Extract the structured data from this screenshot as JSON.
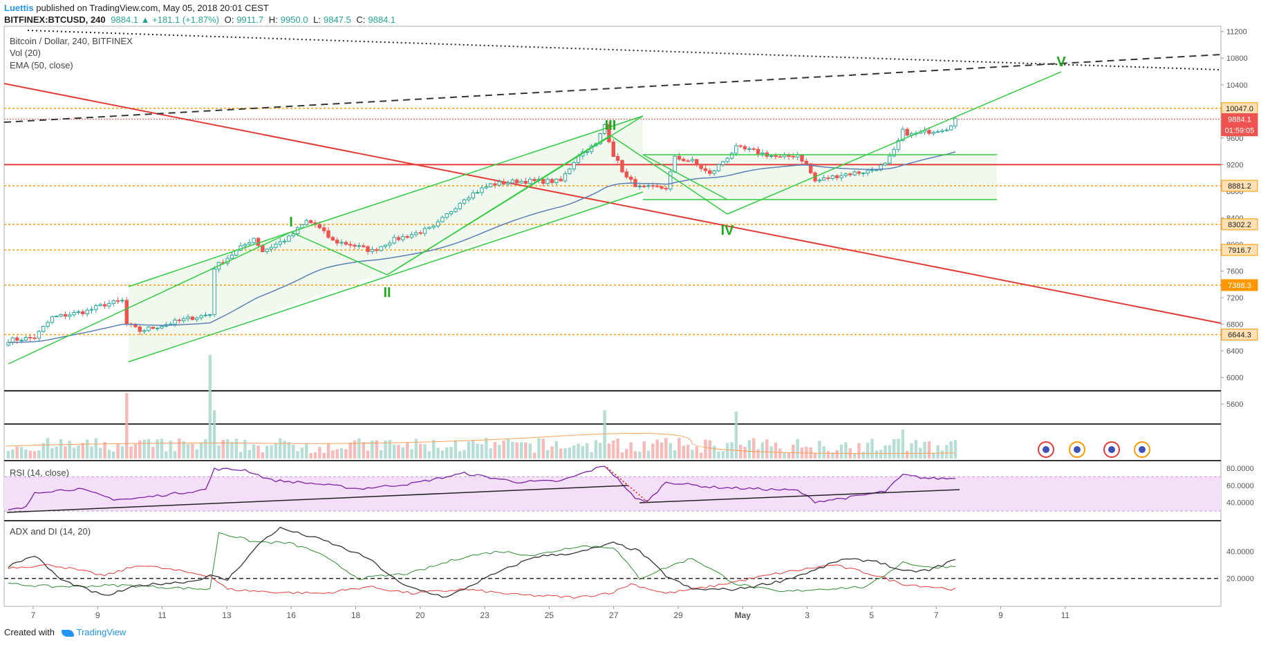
{
  "header": {
    "author": "Luettis",
    "published_text": "published on TradingView.com, May 05, 2018 20:01 CEST",
    "symbol": "BITFINEX:BTCUSD, 240",
    "change": "9884.1 ▲ +181.1 (+1.87%)",
    "o_label": "O:",
    "o": "9911.7",
    "h_label": "H:",
    "h": "9950.0",
    "l_label": "L:",
    "l": "9847.5",
    "c_label": "C:",
    "c": "9884.1"
  },
  "legend": {
    "main": "Bitcoin / Dollar, 240, BITFINEX",
    "vol": "Vol (20)",
    "ema": "EMA (50, close)",
    "rsi": "RSI (14, close)",
    "adx": "ADX and DI (14, 20)"
  },
  "footer": {
    "created_with": "Created with",
    "brand": "TradingView"
  },
  "colors": {
    "up": "#26a69a",
    "down": "#ef5350",
    "trend": "#e53935",
    "green": "#2ecc40",
    "wave_label": "#1fa91f",
    "orange": "#ff9800",
    "ema": "#5b7fb5",
    "rsi": "#7b1fa2",
    "adx": "#333333",
    "plus_di": "#2e8b2e",
    "minus_di": "#e53935"
  },
  "chart_data": {
    "type": "candlestick",
    "title": "Bitcoin / Dollar, 240, BITFINEX",
    "x_labels": [
      "7",
      "9",
      "11",
      "13",
      "16",
      "18",
      "20",
      "23",
      "25",
      "27",
      "29",
      "May",
      "3",
      "5",
      "7",
      "9",
      "11"
    ],
    "y_ticks": [
      5600,
      6000,
      6400,
      6800,
      7200,
      7600,
      8000,
      8400,
      8800,
      9200,
      9600,
      10000,
      10400,
      10800,
      11200
    ],
    "ylim": [
      5300,
      11280
    ],
    "price_tags": [
      {
        "value": 10047.0,
        "label": "10047.0",
        "kind": "level"
      },
      {
        "value": 9884.1,
        "label": "9884.1",
        "kind": "last"
      },
      {
        "value": 9715,
        "label": "01:59:05",
        "kind": "timer"
      },
      {
        "value": 8881.2,
        "label": "8881.2",
        "kind": "level"
      },
      {
        "value": 8302.2,
        "label": "8302.2",
        "kind": "level"
      },
      {
        "value": 7916.7,
        "label": "7916.7",
        "kind": "level"
      },
      {
        "value": 7388.3,
        "label": "7388.3",
        "kind": "level-strong"
      },
      {
        "value": 6644.3,
        "label": "6644.3",
        "kind": "level"
      }
    ],
    "horizontal_levels": [
      {
        "value": 10047.0,
        "style": "orange-dotted"
      },
      {
        "value": 9884.1,
        "style": "red-dotted"
      },
      {
        "value": 9200,
        "style": "red-solid"
      },
      {
        "value": 8881.2,
        "style": "orange-dotted"
      },
      {
        "value": 8302.2,
        "style": "orange-dotted"
      },
      {
        "value": 7916.7,
        "style": "orange-dotted"
      },
      {
        "value": 7388.3,
        "style": "orange-dotted"
      },
      {
        "value": 6644.3,
        "style": "orange-dotted"
      }
    ],
    "wave_labels": [
      "I",
      "II",
      "III",
      "IV",
      "V"
    ],
    "close_anchors": [
      [
        0,
        6560
      ],
      [
        6,
        6600
      ],
      [
        10,
        6900
      ],
      [
        18,
        7000
      ],
      [
        22,
        7100
      ],
      [
        26,
        7150
      ],
      [
        27,
        6800
      ],
      [
        30,
        6700
      ],
      [
        36,
        6800
      ],
      [
        42,
        6900
      ],
      [
        46,
        6950
      ],
      [
        47,
        7650
      ],
      [
        52,
        7900
      ],
      [
        56,
        8100
      ],
      [
        58,
        7900
      ],
      [
        64,
        8100
      ],
      [
        68,
        8350
      ],
      [
        70,
        8300
      ],
      [
        74,
        8050
      ],
      [
        78,
        8000
      ],
      [
        83,
        7900
      ],
      [
        87,
        8050
      ],
      [
        92,
        8150
      ],
      [
        97,
        8250
      ],
      [
        104,
        8700
      ],
      [
        110,
        8900
      ],
      [
        116,
        8950
      ],
      [
        122,
        8950
      ],
      [
        126,
        8950
      ],
      [
        130,
        9350
      ],
      [
        134,
        9500
      ],
      [
        136,
        9800
      ],
      [
        138,
        9350
      ],
      [
        141,
        9000
      ],
      [
        144,
        8850
      ],
      [
        150,
        8850
      ],
      [
        152,
        9300
      ],
      [
        156,
        9250
      ],
      [
        160,
        9050
      ],
      [
        166,
        9450
      ],
      [
        170,
        9400
      ],
      [
        176,
        9300
      ],
      [
        180,
        9350
      ],
      [
        182,
        9200
      ],
      [
        184,
        8950
      ],
      [
        190,
        9050
      ],
      [
        196,
        9100
      ],
      [
        200,
        9200
      ],
      [
        202,
        9400
      ],
      [
        204,
        9700
      ],
      [
        206,
        9650
      ],
      [
        210,
        9700
      ],
      [
        214,
        9750
      ],
      [
        216,
        9884
      ]
    ],
    "rsi_ticks": [
      80,
      60,
      40
    ],
    "rsi_anchors": [
      [
        0,
        31
      ],
      [
        4,
        34
      ],
      [
        6,
        52
      ],
      [
        16,
        56
      ],
      [
        24,
        44
      ],
      [
        28,
        44
      ],
      [
        45,
        55
      ],
      [
        47,
        79
      ],
      [
        54,
        78
      ],
      [
        60,
        66
      ],
      [
        70,
        62
      ],
      [
        80,
        56
      ],
      [
        92,
        62
      ],
      [
        104,
        74
      ],
      [
        116,
        64
      ],
      [
        126,
        65
      ],
      [
        136,
        83
      ],
      [
        140,
        62
      ],
      [
        143,
        44
      ],
      [
        146,
        42
      ],
      [
        150,
        64
      ],
      [
        160,
        58
      ],
      [
        170,
        56
      ],
      [
        180,
        54
      ],
      [
        184,
        41
      ],
      [
        192,
        46
      ],
      [
        200,
        53
      ],
      [
        204,
        72
      ],
      [
        210,
        68
      ],
      [
        216,
        68
      ]
    ],
    "adx_ticks": [
      40,
      20
    ],
    "adx_anchors": [
      [
        0,
        29
      ],
      [
        6,
        37
      ],
      [
        12,
        19
      ],
      [
        22,
        7
      ],
      [
        30,
        15
      ],
      [
        42,
        18
      ],
      [
        46,
        22
      ],
      [
        50,
        19
      ],
      [
        58,
        48
      ],
      [
        62,
        57
      ],
      [
        72,
        48
      ],
      [
        82,
        35
      ],
      [
        90,
        15
      ],
      [
        100,
        6
      ],
      [
        110,
        22
      ],
      [
        120,
        36
      ],
      [
        130,
        39
      ],
      [
        138,
        46
      ],
      [
        144,
        40
      ],
      [
        150,
        22
      ],
      [
        156,
        12
      ],
      [
        166,
        12
      ],
      [
        176,
        18
      ],
      [
        184,
        26
      ],
      [
        190,
        34
      ],
      [
        198,
        33
      ],
      [
        204,
        25
      ],
      [
        210,
        26
      ],
      [
        216,
        34
      ]
    ],
    "plus_di_anchors": [
      [
        0,
        16
      ],
      [
        10,
        14
      ],
      [
        26,
        15
      ],
      [
        46,
        12
      ],
      [
        48,
        54
      ],
      [
        56,
        47
      ],
      [
        64,
        46
      ],
      [
        70,
        40
      ],
      [
        80,
        20
      ],
      [
        92,
        24
      ],
      [
        104,
        36
      ],
      [
        112,
        40
      ],
      [
        120,
        37
      ],
      [
        130,
        44
      ],
      [
        138,
        43
      ],
      [
        144,
        20
      ],
      [
        150,
        28
      ],
      [
        156,
        35
      ],
      [
        166,
        16
      ],
      [
        176,
        10
      ],
      [
        184,
        12
      ],
      [
        196,
        14
      ],
      [
        204,
        32
      ],
      [
        210,
        28
      ],
      [
        216,
        29
      ]
    ],
    "minus_di_anchors": [
      [
        0,
        28
      ],
      [
        10,
        30
      ],
      [
        22,
        22
      ],
      [
        30,
        30
      ],
      [
        46,
        22
      ],
      [
        50,
        12
      ],
      [
        60,
        10
      ],
      [
        72,
        9
      ],
      [
        82,
        14
      ],
      [
        92,
        9
      ],
      [
        104,
        12
      ],
      [
        116,
        8
      ],
      [
        130,
        6
      ],
      [
        138,
        10
      ],
      [
        142,
        16
      ],
      [
        150,
        9
      ],
      [
        160,
        14
      ],
      [
        176,
        24
      ],
      [
        188,
        30
      ],
      [
        196,
        24
      ],
      [
        204,
        16
      ],
      [
        210,
        14
      ],
      [
        216,
        12
      ]
    ]
  }
}
